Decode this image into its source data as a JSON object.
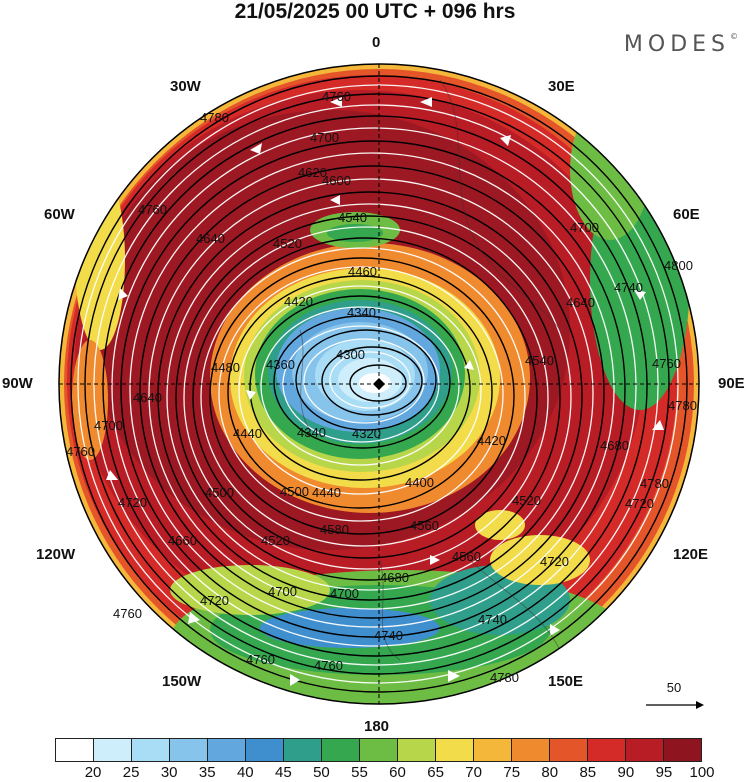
{
  "header": {
    "title": "21/05/2025  00 UTC  + 096 hrs",
    "brand": "MODES"
  },
  "map": {
    "projection": "north-polar-stereographic",
    "longitude_labels": {
      "lon_0": "0",
      "lon_30e": "30E",
      "lon_60e": "60E",
      "lon_90e": "90E",
      "lon_120e": "120E",
      "lon_150e": "150E",
      "lon_180": "180",
      "lon_150w": "150W",
      "lon_120w": "120W",
      "lon_90w": "90W",
      "lon_60w": "60W",
      "lon_30w": "30W"
    },
    "contour_labels": [
      "4300",
      "4320",
      "4340",
      "4360",
      "4380",
      "4400",
      "4420",
      "4440",
      "4460",
      "4480",
      "4500",
      "4520",
      "4540",
      "4560",
      "4580",
      "4600",
      "4620",
      "4640",
      "4660",
      "4680",
      "4700",
      "4720",
      "4740",
      "4760",
      "4780",
      "4800"
    ],
    "reference_vector": {
      "label": "50"
    },
    "low_center_marker": "diamond"
  },
  "colorbar": {
    "ticks": [
      "20",
      "25",
      "30",
      "35",
      "40",
      "45",
      "50",
      "55",
      "60",
      "65",
      "70",
      "75",
      "80",
      "85",
      "90",
      "95",
      "100"
    ],
    "colors": [
      "#ffffff",
      "#cfeefc",
      "#a9dcf5",
      "#87c4ec",
      "#62a8df",
      "#3f8fcf",
      "#2f9e8a",
      "#35a84f",
      "#6dbd45",
      "#b8d64a",
      "#f2dc4a",
      "#f5b73a",
      "#ef8a2e",
      "#e4552a",
      "#d42a28",
      "#b81c25",
      "#8e1420"
    ]
  }
}
